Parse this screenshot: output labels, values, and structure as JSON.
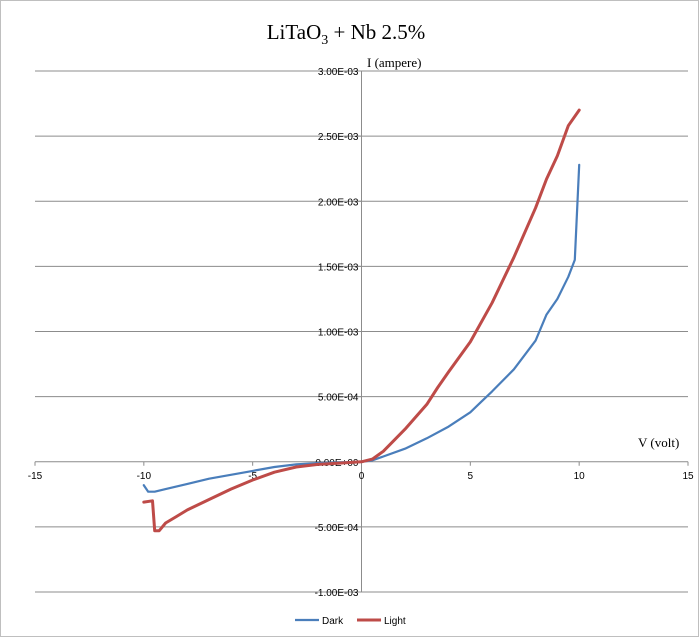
{
  "chart_data": {
    "type": "line",
    "title_main": "LiTaO",
    "title_sub": "3",
    "title_rest": " + Nb 2.5%",
    "xlabel": "V (volt)",
    "ylabel": "I (ampere)",
    "xlim": [
      -15,
      15
    ],
    "ylim": [
      -0.001,
      0.003
    ],
    "x_ticks": [
      -15,
      -10,
      -5,
      0,
      5,
      10,
      15
    ],
    "x_tick_labels": [
      "-15",
      "-10",
      "-5",
      "0",
      "5",
      "10",
      "15"
    ],
    "y_ticks": [
      -0.001,
      -0.0005,
      0,
      0.0005,
      0.001,
      0.0015,
      0.002,
      0.0025,
      0.003
    ],
    "y_tick_labels": [
      "-1.00E-03",
      "-5.00E-04",
      "0.00E+00",
      "5.00E-04",
      "1.00E-03",
      "1.50E-03",
      "2.00E-03",
      "2.50E-03",
      "3.00E-03"
    ],
    "grid": "horizontal",
    "legend_position": "bottom",
    "series": [
      {
        "name": "Dark",
        "color": "#4a7ebb",
        "x": [
          -10,
          -9.8,
          -9.5,
          -9,
          -8,
          -7,
          -6,
          -5,
          -4,
          -3,
          -2,
          -1,
          0,
          0.5,
          1,
          2,
          3,
          4,
          5,
          5.5,
          6,
          7,
          8,
          8.5,
          9,
          9.5,
          9.8,
          10
        ],
        "y": [
          -0.00018,
          -0.00023,
          -0.00023,
          -0.00021,
          -0.00017,
          -0.00013,
          -0.0001,
          -7e-05,
          -4e-05,
          -2e-05,
          -1e-05,
          -5e-06,
          0,
          1e-05,
          4e-05,
          0.0001,
          0.00018,
          0.00027,
          0.00038,
          0.00046,
          0.00054,
          0.00071,
          0.00093,
          0.00113,
          0.00125,
          0.00142,
          0.00155,
          0.00228
        ]
      },
      {
        "name": "Light",
        "color": "#be4b48",
        "x": [
          -10,
          -9.6,
          -9.5,
          -9.3,
          -9,
          -8.5,
          -8,
          -7,
          -6,
          -5,
          -4,
          -3,
          -2,
          -1,
          0,
          0.5,
          1,
          2,
          3,
          3.5,
          4,
          5,
          6,
          7,
          8,
          8.5,
          9,
          9.5,
          10
        ],
        "y": [
          -0.00031,
          -0.0003,
          -0.00053,
          -0.00053,
          -0.00047,
          -0.00042,
          -0.00037,
          -0.00029,
          -0.00021,
          -0.00014,
          -8e-05,
          -4e-05,
          -2e-05,
          -1e-05,
          0,
          2e-05,
          8e-05,
          0.00025,
          0.00044,
          0.00057,
          0.00069,
          0.00092,
          0.00122,
          0.00157,
          0.00195,
          0.00217,
          0.00235,
          0.00258,
          0.0027
        ]
      }
    ]
  }
}
